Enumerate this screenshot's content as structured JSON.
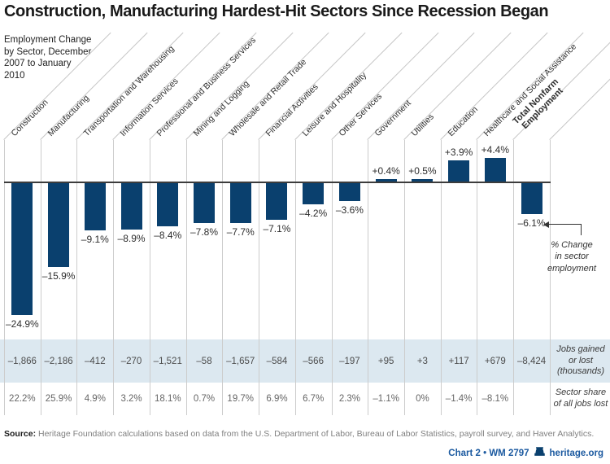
{
  "title": "Construction, Manufacturing Hardest-Hit Sectors Since Recession Began",
  "subtitle": "Employment Change\nby Sector, December\n2007 to January\n2010",
  "chart_data": {
    "type": "bar",
    "title": "Construction, Manufacturing Hardest-Hit Sectors Since Recession Began",
    "subtitle": "Employment Change by Sector, December 2007 to January 2010",
    "ylabel": "% Change in sector employment",
    "ylim": [
      -26,
      5
    ],
    "grid": "vertical column separators",
    "legend_position": "none",
    "categories": [
      "Construction",
      "Manufacturing",
      "Transportation and Warehousing",
      "Information Services",
      "Professional and Business Services",
      "Mining and Logging",
      "Wholesale and Retail Trade",
      "Financial Activities",
      "Leisure and Hospitality",
      "Other Services",
      "Government",
      "Utilities",
      "Education",
      "Healthcare and Social Assistance",
      "Total Nonfarm Employment"
    ],
    "series": [
      {
        "name": "% Change in sector employment",
        "values": [
          -24.9,
          -15.9,
          -9.1,
          -8.9,
          -8.4,
          -7.8,
          -7.7,
          -7.1,
          -4.2,
          -3.6,
          0.4,
          0.5,
          3.9,
          4.4,
          -6.1
        ],
        "labels": [
          "–24.9%",
          "–15.9%",
          "–9.1%",
          "–8.9%",
          "–8.4%",
          "–7.8%",
          "–7.7%",
          "–7.1%",
          "–4.2%",
          "–3.6%",
          "+0.4%",
          "+0.5%",
          "+3.9%",
          "+4.4%",
          "–6.1%"
        ]
      },
      {
        "name": "Jobs gained or lost (thousands)",
        "values": [
          -1866,
          -2186,
          -412,
          -270,
          -1521,
          -58,
          -1657,
          -584,
          -566,
          -197,
          95,
          3,
          117,
          679,
          -8424
        ],
        "labels": [
          "–1,866",
          "–2,186",
          "–412",
          "–270",
          "–1,521",
          "–58",
          "–1,657",
          "–584",
          "–566",
          "–197",
          "+95",
          "+3",
          "+117",
          "+679",
          "–8,424"
        ]
      },
      {
        "name": "Sector share of all jobs lost",
        "values": [
          22.2,
          25.9,
          4.9,
          3.2,
          18.1,
          0.7,
          19.7,
          6.9,
          6.7,
          2.3,
          -1.1,
          0,
          -1.4,
          -8.1,
          null
        ],
        "labels": [
          "22.2%",
          "25.9%",
          "4.9%",
          "3.2%",
          "18.1%",
          "0.7%",
          "19.7%",
          "6.9%",
          "6.7%",
          "2.3%",
          "–1.1%",
          "0%",
          "–1.4%",
          "–8.1%",
          ""
        ]
      }
    ]
  },
  "annotation": {
    "text": "% Change\nin sector\nemployment",
    "arrow_target_label": "–6.1%"
  },
  "row_labels": {
    "jobs": "Jobs gained\nor lost\n(thousands)",
    "share": "Sector share\nof all jobs lost"
  },
  "source": {
    "label": "Source:",
    "text": " Heritage Foundation calculations based on data from the U.S. Department of Labor, Bureau of Labor Statistics, payroll survey, and Haver Analytics."
  },
  "footer": {
    "ref": "Chart 2 • WM 2797",
    "site": "heritage.org",
    "logo_icon": "liberty-bell-icon"
  },
  "colors": {
    "bar": "#0a406e",
    "band": "#dce8f0",
    "gridline": "#cccccc",
    "zero_line": "#3c3c3c",
    "footer_blue": "#1c5aa0",
    "title": "#1a1a1a"
  }
}
